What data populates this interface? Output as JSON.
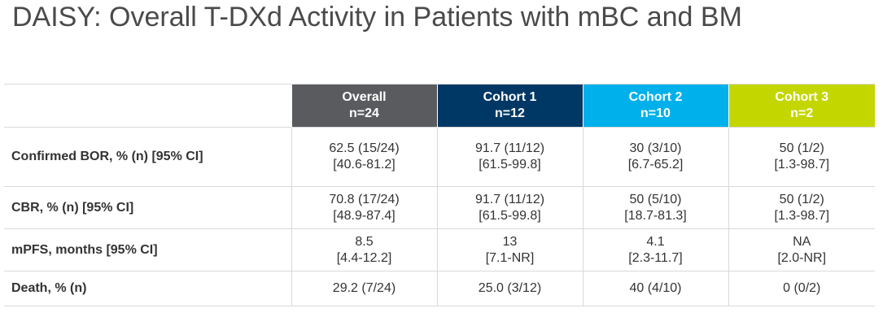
{
  "title": "DAISY: Overall T-DXd Activity in Patients with mBC and BM",
  "colors": {
    "overall": "#5a5b5e",
    "cohort1": "#003865",
    "cohort2": "#00b0ea",
    "cohort3": "#c4d600"
  },
  "table": {
    "columns": [
      {
        "name": "Overall",
        "n": "n=24"
      },
      {
        "name": "Cohort 1",
        "n": "n=12"
      },
      {
        "name": "Cohort 2",
        "n": "n=10"
      },
      {
        "name": "Cohort 3",
        "n": "n=2"
      }
    ],
    "rows": [
      {
        "label": "Confirmed BOR, % (n) [95% CI]",
        "cells": [
          {
            "line1": "62.5 (15/24)",
            "line2": "[40.6-81.2]"
          },
          {
            "line1": "91.7 (11/12)",
            "line2": "[61.5-99.8]"
          },
          {
            "line1": "30 (3/10)",
            "line2": "[6.7-65.2]"
          },
          {
            "line1": "50 (1/2)",
            "line2": "[1.3-98.7]"
          }
        ]
      },
      {
        "label": "CBR, % (n) [95% CI]",
        "cells": [
          {
            "line1": "70.8 (17/24)",
            "line2": "[48.9-87.4]"
          },
          {
            "line1": "91.7 (11/12)",
            "line2": "[61.5-99.8]"
          },
          {
            "line1": "50 (5/10)",
            "line2": "[18.7-81.3]"
          },
          {
            "line1": "50 (1/2)",
            "line2": "[1.3-98.7]"
          }
        ]
      },
      {
        "label": "mPFS, months [95% CI]",
        "cells": [
          {
            "line1": "8.5",
            "line2": "[4.4-12.2]"
          },
          {
            "line1": "13",
            "line2": "[7.1-NR]"
          },
          {
            "line1": "4.1",
            "line2": "[2.3-11.7]"
          },
          {
            "line1": "NA",
            "line2": "[2.0-NR]"
          }
        ]
      },
      {
        "label": "Death, % (n)",
        "cells": [
          {
            "line1": "29.2 (7/24)"
          },
          {
            "line1": "25.0 (3/12)"
          },
          {
            "line1": "40 (4/10)"
          },
          {
            "line1": "0 (0/2)"
          }
        ]
      }
    ]
  }
}
